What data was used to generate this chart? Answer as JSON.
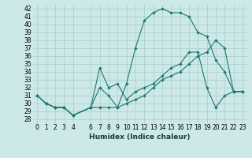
{
  "title": "",
  "xlabel": "Humidex (Indice chaleur)",
  "background_color": "#cce8e8",
  "grid_color": "#aacccc",
  "line_color": "#1a7a6a",
  "xlim": [
    -0.5,
    23.5
  ],
  "ylim": [
    27.5,
    42.5
  ],
  "xticks": [
    0,
    1,
    2,
    3,
    4,
    6,
    7,
    8,
    9,
    10,
    11,
    12,
    13,
    14,
    15,
    16,
    17,
    18,
    19,
    20,
    21,
    22,
    23
  ],
  "yticks": [
    28,
    29,
    30,
    31,
    32,
    33,
    34,
    35,
    36,
    37,
    38,
    39,
    40,
    41,
    42
  ],
  "line1_x": [
    0,
    1,
    2,
    3,
    4,
    6,
    7,
    8,
    9,
    10,
    11,
    12,
    13,
    14,
    15,
    16,
    17,
    18,
    19,
    20,
    21,
    22,
    23
  ],
  "line1_y": [
    31.0,
    30.0,
    29.5,
    29.5,
    28.5,
    29.5,
    32.0,
    31.0,
    29.5,
    32.5,
    37.0,
    40.5,
    41.5,
    42.0,
    41.5,
    41.5,
    41.0,
    39.0,
    38.5,
    35.5,
    34.0,
    31.5,
    31.5
  ],
  "line2_x": [
    0,
    1,
    2,
    3,
    4,
    6,
    7,
    8,
    9,
    10,
    11,
    12,
    13,
    14,
    15,
    16,
    17,
    18,
    19,
    20,
    21,
    22,
    23
  ],
  "line2_y": [
    31.0,
    30.0,
    29.5,
    29.5,
    28.5,
    29.5,
    29.5,
    29.5,
    29.5,
    30.0,
    30.5,
    31.0,
    32.0,
    33.0,
    33.5,
    34.0,
    35.0,
    36.0,
    36.5,
    38.0,
    37.0,
    31.5,
    31.5
  ],
  "line3_x": [
    0,
    1,
    2,
    3,
    4,
    6,
    7,
    8,
    9,
    10,
    11,
    12,
    13,
    14,
    15,
    16,
    17,
    18,
    19,
    20,
    21,
    22,
    23
  ],
  "line3_y": [
    31.0,
    30.0,
    29.5,
    29.5,
    28.5,
    29.5,
    34.5,
    32.0,
    32.5,
    30.5,
    31.5,
    32.0,
    32.5,
    33.5,
    34.5,
    35.0,
    36.5,
    36.5,
    32.0,
    29.5,
    31.0,
    31.5,
    31.5
  ],
  "tick_fontsize": 5.5,
  "xlabel_fontsize": 6.5
}
